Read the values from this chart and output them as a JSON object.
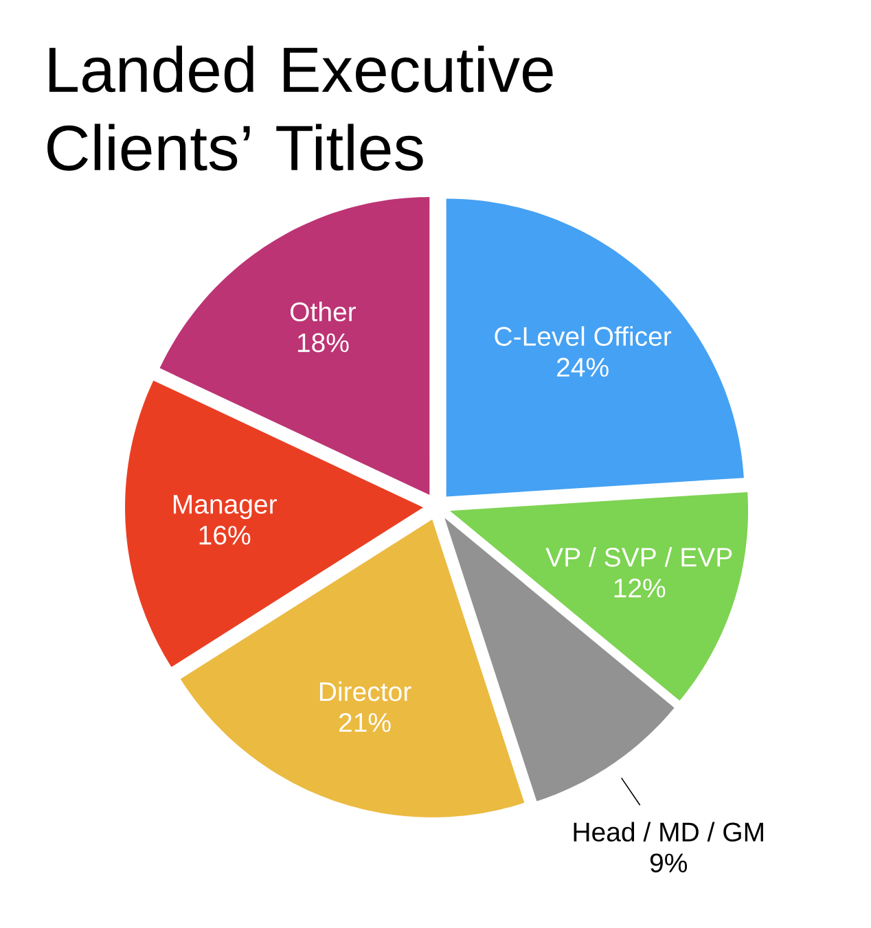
{
  "chart_data": {
    "type": "pie",
    "title": "Landed Executive Clients’ Titles",
    "categories": [
      "C-Level Officer",
      "VP / SVP / EVP",
      "Head / MD / GM",
      "Director",
      "Manager",
      "Other"
    ],
    "values": [
      24,
      12,
      9,
      21,
      16,
      18
    ],
    "value_labels": [
      "24%",
      "12%",
      "9%",
      "21%",
      "16%",
      "18%"
    ],
    "colors": [
      "#45a1f3",
      "#7dd352",
      "#929292",
      "#ebba41",
      "#ea3e23",
      "#bc3474"
    ]
  }
}
